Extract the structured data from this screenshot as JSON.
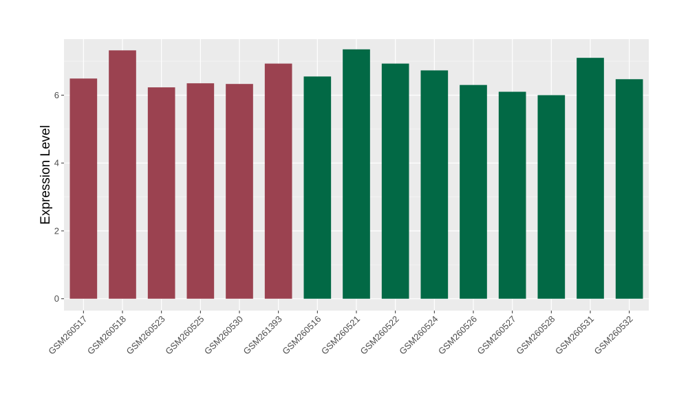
{
  "chart_data": {
    "type": "bar",
    "title": "",
    "xlabel": "",
    "ylabel": "Expression Level",
    "ylim": [
      -0.35,
      7.65
    ],
    "yticks": [
      0,
      2,
      4,
      6
    ],
    "grid": true,
    "categories": [
      "GSM260517",
      "GSM260518",
      "GSM260523",
      "GSM260525",
      "GSM260530",
      "GSM261393",
      "GSM260516",
      "GSM260521",
      "GSM260522",
      "GSM260524",
      "GSM260526",
      "GSM260527",
      "GSM260528",
      "GSM260531",
      "GSM260532"
    ],
    "values": [
      6.49,
      7.32,
      6.23,
      6.35,
      6.33,
      6.93,
      6.55,
      7.35,
      6.93,
      6.73,
      6.3,
      6.1,
      6.0,
      7.1,
      6.47
    ],
    "groups": [
      0,
      0,
      0,
      0,
      0,
      0,
      1,
      1,
      1,
      1,
      1,
      1,
      1,
      1,
      1
    ],
    "colors": {
      "group_colors": [
        "#9b4250",
        "#026945"
      ],
      "panel_background": "#ebebeb",
      "grid_major": "#ffffff",
      "grid_minor": "#f5f5f5",
      "axis_text": "#4d4d4d"
    }
  }
}
